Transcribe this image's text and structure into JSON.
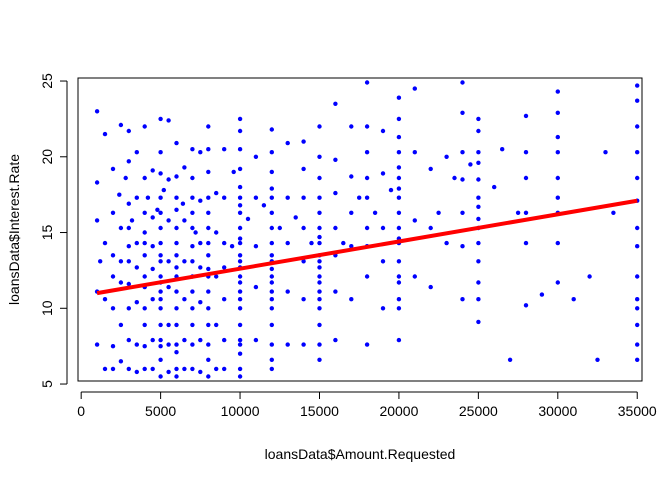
{
  "chart_data": {
    "type": "scatter",
    "xlabel": "loansData$Amount.Requested",
    "ylabel": "loansData$Interest.Rate",
    "xlim": [
      -200,
      35300
    ],
    "ylim": [
      5.2,
      25.2
    ],
    "x_ticks": [
      0,
      5000,
      10000,
      15000,
      20000,
      25000,
      30000,
      35000
    ],
    "y_ticks": [
      5,
      10,
      15,
      20,
      25
    ],
    "grid": false,
    "point_color": "#0000ff",
    "fit_line": {
      "type": "regression",
      "color": "#ff0000",
      "x": [
        1000,
        35000
      ],
      "y": [
        11.0,
        17.1
      ]
    },
    "series": [
      {
        "x": [
          1000,
          1000,
          1000,
          1000,
          1000,
          1200,
          1500,
          1500,
          1500,
          1500,
          2000,
          2000,
          2000,
          2000,
          2000,
          2000,
          2000,
          2400,
          2500,
          2500,
          2500,
          2500,
          2500,
          2500,
          2800,
          3000,
          3000,
          3000,
          3000,
          3000,
          3000,
          3000,
          3000,
          3000,
          3000,
          3200,
          3500,
          3500,
          3500,
          3500,
          3500,
          3500,
          3500,
          4000,
          4000,
          4000,
          4000,
          4000,
          4000,
          4000,
          4000,
          4000,
          4000,
          4000,
          4000,
          4200,
          4500,
          4500,
          4500,
          4500,
          4500,
          4500,
          4500,
          4800,
          5000,
          5000,
          5000,
          5000,
          5000,
          5000,
          5000,
          5000,
          5000,
          5000,
          5000,
          5000,
          5000,
          5000,
          5000,
          5000,
          5000,
          5000,
          5000,
          5200,
          5500,
          5500,
          5500,
          5500,
          5500,
          5500,
          5500,
          5500,
          6000,
          6000,
          6000,
          6000,
          6000,
          6000,
          6000,
          6000,
          6000,
          6000,
          6000,
          6000,
          6000,
          6000,
          6000,
          6000,
          6400,
          6500,
          6500,
          6500,
          6500,
          6500,
          6500,
          7000,
          7000,
          7000,
          7000,
          7000,
          7000,
          7000,
          7000,
          7000,
          7000,
          7000,
          7000,
          7000,
          7200,
          7500,
          7500,
          7500,
          7500,
          7500,
          7500,
          7500,
          8000,
          8000,
          8000,
          8000,
          8000,
          8000,
          8000,
          8000,
          8000,
          8000,
          8000,
          8000,
          8000,
          8000,
          8000,
          8000,
          8500,
          8500,
          8500,
          8500,
          8500,
          9000,
          9000,
          9000,
          9000,
          9000,
          9000,
          9000,
          9500,
          9600,
          10000,
          10000,
          10000,
          10000,
          10000,
          10000,
          10000,
          10000,
          10000,
          10000,
          10000,
          10000,
          10000,
          10000,
          10000,
          10000,
          10000,
          10000,
          10000,
          10000,
          10000,
          10000,
          10000,
          10000,
          10000,
          10500,
          11000,
          11000,
          11000,
          11000,
          11000,
          11500,
          12000,
          12000,
          12000,
          12000,
          12000,
          12000,
          12000,
          12000,
          12000,
          12000,
          12000,
          12000,
          12000,
          12000,
          12000,
          12000,
          12000,
          12000,
          12000,
          12000,
          12500,
          13000,
          13000,
          13000,
          13000,
          13000,
          13500,
          14000,
          14000,
          14000,
          14000,
          14000,
          14000,
          14000,
          14500,
          15000,
          15000,
          15000,
          15000,
          15000,
          15000,
          15000,
          15000,
          15000,
          15000,
          15000,
          15000,
          15000,
          15000,
          15000,
          15000,
          15000,
          15000,
          15000,
          16000,
          16000,
          16000,
          16000,
          16000,
          16000,
          16000,
          16500,
          17000,
          17000,
          17000,
          17000,
          17000,
          17500,
          18000,
          18000,
          18000,
          18000,
          18000,
          18000,
          18000,
          18000,
          18000,
          18500,
          19000,
          19000,
          19000,
          19000,
          19000,
          19500,
          20000,
          20000,
          20000,
          20000,
          20000,
          20000,
          20000,
          20000,
          20000,
          20000,
          20000,
          20000,
          20000,
          20000,
          20000,
          20000,
          20000,
          20000,
          21000,
          21000,
          21000,
          21000,
          22000,
          22000,
          22000,
          22500,
          23000,
          23000,
          23500,
          24000,
          24000,
          24000,
          24000,
          24000,
          24000,
          24000,
          24500,
          25000,
          25000,
          25000,
          25000,
          25000,
          25000,
          25000,
          25000,
          25000,
          25000,
          25000,
          25000,
          25000,
          25000,
          26000,
          26500,
          27000,
          27500,
          28000,
          28000,
          28000,
          28000,
          28000,
          28000,
          29000,
          30000,
          30000,
          30000,
          30000,
          30000,
          30000,
          30000,
          30000,
          30000,
          31000,
          32000,
          32500,
          33000,
          33500,
          35000,
          35000,
          35000,
          35000,
          35000,
          35000,
          35000,
          35000,
          35000,
          35000,
          35000,
          35000,
          35000,
          35000
        ],
        "y": [
          23.0,
          18.3,
          15.8,
          11.1,
          7.6,
          13.1,
          21.5,
          14.3,
          10.6,
          6.0,
          19.2,
          16.3,
          13.5,
          12.1,
          10.0,
          7.5,
          6.0,
          17.5,
          22.1,
          15.3,
          13.1,
          11.7,
          8.9,
          6.5,
          18.6,
          21.7,
          19.7,
          16.9,
          15.3,
          14.1,
          13.1,
          11.6,
          10.0,
          7.9,
          6.0,
          15.8,
          20.3,
          17.3,
          14.3,
          12.7,
          10.4,
          7.6,
          5.8,
          22.0,
          18.6,
          16.3,
          15.0,
          14.3,
          13.5,
          12.1,
          11.4,
          10.0,
          8.9,
          7.5,
          6.0,
          17.3,
          19.1,
          16.0,
          14.1,
          12.6,
          10.6,
          7.9,
          6.0,
          16.5,
          22.5,
          20.3,
          18.9,
          17.3,
          16.3,
          15.3,
          14.3,
          13.5,
          13.1,
          12.1,
          11.7,
          11.1,
          10.6,
          10.0,
          8.9,
          7.9,
          7.5,
          6.6,
          5.5,
          17.8,
          22.4,
          18.5,
          15.8,
          13.1,
          11.4,
          8.9,
          7.6,
          5.8,
          20.9,
          18.7,
          17.3,
          16.5,
          15.3,
          14.3,
          13.5,
          12.7,
          12.1,
          11.1,
          10.0,
          8.9,
          7.6,
          7.1,
          6.0,
          5.5,
          16.9,
          19.3,
          15.8,
          13.1,
          10.6,
          7.9,
          6.0,
          20.5,
          18.6,
          17.3,
          16.3,
          15.3,
          14.1,
          13.1,
          12.1,
          11.1,
          10.0,
          8.9,
          7.6,
          6.0,
          15.0,
          20.3,
          17.1,
          14.3,
          12.7,
          10.4,
          7.9,
          5.8,
          22.0,
          20.5,
          19.0,
          17.3,
          16.3,
          15.3,
          14.3,
          13.5,
          12.6,
          12.1,
          11.1,
          10.0,
          8.9,
          7.6,
          6.6,
          5.5,
          17.6,
          15.0,
          12.1,
          8.9,
          6.0,
          20.5,
          17.3,
          14.3,
          12.7,
          10.6,
          7.9,
          6.0,
          14.1,
          19.0,
          22.5,
          21.7,
          20.5,
          19.2,
          18.0,
          17.3,
          16.8,
          16.3,
          15.3,
          14.6,
          14.3,
          13.5,
          13.1,
          12.7,
          12.1,
          11.7,
          11.1,
          10.6,
          10.0,
          8.9,
          7.9,
          7.6,
          7.0,
          6.0,
          5.5,
          15.9,
          20.0,
          17.3,
          14.1,
          11.4,
          7.9,
          16.8,
          21.8,
          20.3,
          19.0,
          17.9,
          17.3,
          16.3,
          15.3,
          14.3,
          13.5,
          13.1,
          12.6,
          12.1,
          11.7,
          11.1,
          10.6,
          10.0,
          8.9,
          7.6,
          6.6,
          6.0,
          15.3,
          20.9,
          17.3,
          14.3,
          11.1,
          7.6,
          16.0,
          21.0,
          19.2,
          17.3,
          15.3,
          13.1,
          10.6,
          7.6,
          14.3,
          22.0,
          20.0,
          18.6,
          17.3,
          16.3,
          15.3,
          14.7,
          14.3,
          13.5,
          13.1,
          12.7,
          12.1,
          11.7,
          11.1,
          10.6,
          10.0,
          8.9,
          7.6,
          6.6,
          23.5,
          19.8,
          17.6,
          15.3,
          13.5,
          11.1,
          7.9,
          14.3,
          22.0,
          18.7,
          16.3,
          14.1,
          10.6,
          17.3,
          24.9,
          22.0,
          20.3,
          18.6,
          17.3,
          15.3,
          14.1,
          12.1,
          7.6,
          16.3,
          21.7,
          18.9,
          15.3,
          13.1,
          10.0,
          17.8,
          23.9,
          22.5,
          21.3,
          20.3,
          19.3,
          18.6,
          17.9,
          17.3,
          16.3,
          15.3,
          14.6,
          14.3,
          13.1,
          12.1,
          11.7,
          10.6,
          10.0,
          7.9,
          24.5,
          20.3,
          15.8,
          12.1,
          19.2,
          15.3,
          11.4,
          16.3,
          20.0,
          14.3,
          18.6,
          24.9,
          22.9,
          20.3,
          18.5,
          16.3,
          14.1,
          10.6,
          19.5,
          22.5,
          21.7,
          20.3,
          19.6,
          18.5,
          17.3,
          16.7,
          15.9,
          15.3,
          14.3,
          13.1,
          11.7,
          10.6,
          9.1,
          18.0,
          20.5,
          6.6,
          16.3,
          22.7,
          20.3,
          18.6,
          16.3,
          14.3,
          10.2,
          10.9,
          24.3,
          22.9,
          21.3,
          20.3,
          18.6,
          17.3,
          16.3,
          14.3,
          11.7,
          10.6,
          12.1,
          6.6,
          20.3,
          16.3,
          24.7,
          23.7,
          22.0,
          20.3,
          18.6,
          17.1,
          15.3,
          14.1,
          12.1,
          10.6,
          8.9,
          7.6,
          6.6,
          10.0
        ]
      }
    ]
  }
}
